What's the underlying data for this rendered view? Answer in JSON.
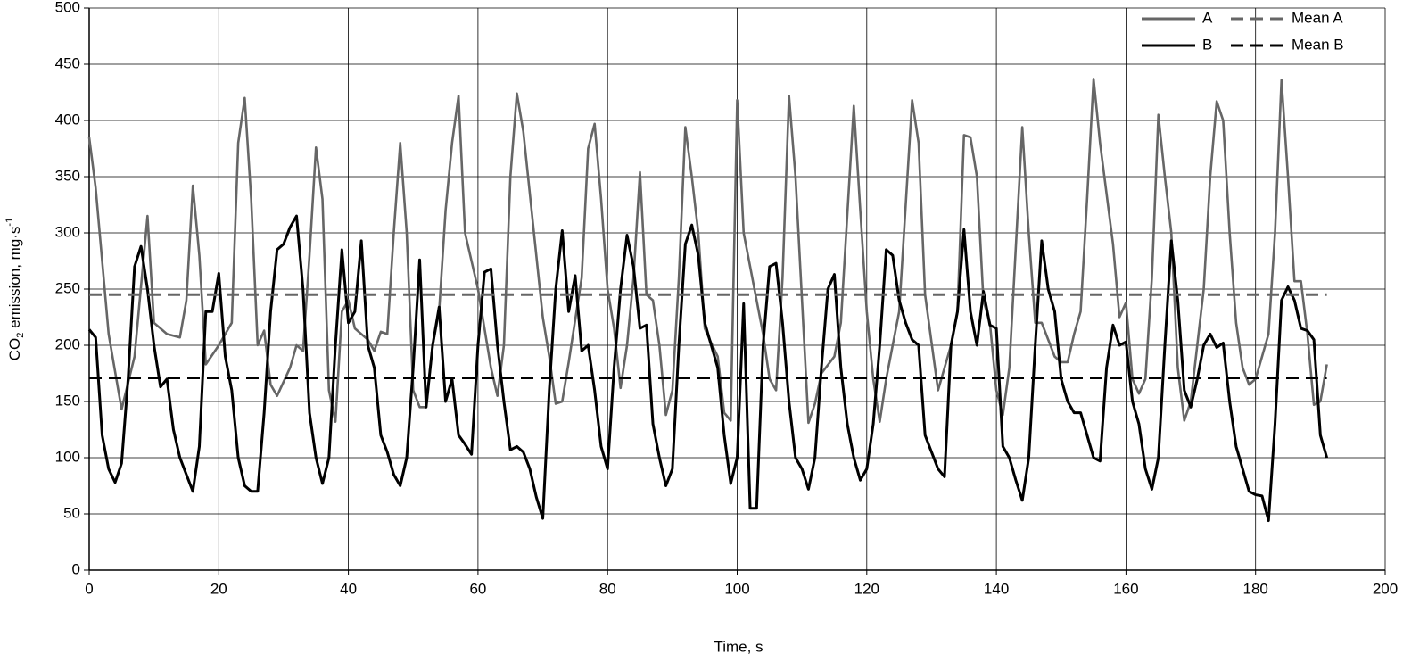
{
  "chart_data": {
    "type": "line",
    "x_label": "Time, s",
    "y_label": {
      "text": "CO",
      "sub": "2",
      "rest": " emission, mg·s",
      "sup": "-1"
    },
    "xlim": [
      0,
      200
    ],
    "xticks": [
      0,
      20,
      40,
      60,
      80,
      100,
      120,
      140,
      160,
      180,
      200
    ],
    "ylim": [
      0,
      500
    ],
    "yticks": [
      0,
      50,
      100,
      150,
      200,
      250,
      300,
      350,
      400,
      450,
      500
    ],
    "grid": true,
    "legend": "top-right",
    "series": [
      {
        "name": "A",
        "color": "#666666",
        "dash": false,
        "x": [
          0,
          1,
          3,
          5,
          7,
          9,
          10,
          12,
          14,
          15,
          16,
          17,
          18,
          20,
          22,
          23,
          24,
          25,
          26,
          27,
          28,
          29,
          31,
          32,
          33,
          34,
          35,
          36,
          37,
          38,
          39,
          40,
          41,
          43,
          44,
          45,
          46,
          47,
          48,
          49,
          50,
          51,
          52,
          53,
          54,
          55,
          56,
          57,
          58,
          60,
          62,
          63,
          64,
          65,
          66,
          67,
          69,
          70,
          71,
          72,
          73,
          74,
          76,
          77,
          78,
          79,
          80,
          81,
          82,
          83,
          84,
          85,
          86,
          87,
          88,
          89,
          90,
          91,
          92,
          93,
          94,
          95,
          96,
          97,
          98,
          99,
          100,
          101,
          103,
          104,
          105,
          106,
          107,
          108,
          109,
          111,
          112,
          113,
          115,
          116,
          118,
          119,
          120,
          121,
          122,
          123,
          125,
          127,
          128,
          129,
          131,
          132,
          133,
          134,
          135,
          136,
          137,
          138,
          139,
          140,
          141,
          142,
          144,
          145,
          146,
          147,
          149,
          150,
          151,
          152,
          153,
          154,
          155,
          156,
          158,
          159,
          160,
          161,
          162,
          163,
          164,
          165,
          166,
          167,
          168,
          169,
          170,
          172,
          173,
          174,
          175,
          176,
          177,
          178,
          179,
          180,
          182,
          183,
          184,
          185,
          186,
          187,
          188,
          189,
          190,
          191
        ],
        "values": [
          385,
          340,
          210,
          143,
          190,
          315,
          220,
          210,
          207,
          240,
          342,
          280,
          183,
          200,
          220,
          380,
          420,
          330,
          200,
          213,
          165,
          155,
          180,
          200,
          195,
          280,
          376,
          330,
          160,
          132,
          230,
          240,
          215,
          205,
          195,
          212,
          210,
          300,
          380,
          300,
          160,
          145,
          145,
          200,
          230,
          320,
          380,
          422,
          300,
          250,
          180,
          155,
          200,
          350,
          424,
          390,
          280,
          225,
          190,
          148,
          150,
          185,
          260,
          375,
          397,
          330,
          250,
          215,
          162,
          200,
          260,
          354,
          245,
          240,
          200,
          138,
          160,
          260,
          394,
          350,
          300,
          215,
          202,
          190,
          140,
          133,
          418,
          300,
          240,
          210,
          170,
          160,
          260,
          422,
          350,
          131,
          148,
          175,
          190,
          220,
          413,
          320,
          230,
          170,
          132,
          170,
          230,
          418,
          380,
          245,
          160,
          180,
          200,
          230,
          387,
          385,
          350,
          240,
          220,
          160,
          138,
          180,
          394,
          300,
          220,
          220,
          190,
          185,
          185,
          210,
          230,
          330,
          437,
          380,
          290,
          225,
          238,
          170,
          157,
          170,
          260,
          405,
          350,
          300,
          180,
          133,
          150,
          250,
          350,
          417,
          400,
          300,
          220,
          180,
          165,
          170,
          210,
          300,
          436,
          350,
          257,
          257,
          210,
          147,
          150,
          183
        ]
      },
      {
        "name": "B",
        "color": "#000000",
        "dash": false,
        "x": [
          0,
          1,
          2,
          3,
          4,
          5,
          6,
          7,
          8,
          9,
          10,
          11,
          12,
          13,
          14,
          15,
          16,
          17,
          18,
          19,
          20,
          21,
          22,
          23,
          24,
          25,
          26,
          27,
          28,
          29,
          30,
          31,
          32,
          33,
          34,
          35,
          36,
          37,
          38,
          39,
          40,
          41,
          42,
          43,
          44,
          45,
          46,
          47,
          48,
          49,
          50,
          51,
          52,
          53,
          54,
          55,
          56,
          57,
          58,
          59,
          60,
          61,
          62,
          63,
          64,
          65,
          66,
          67,
          68,
          69,
          70,
          71,
          72,
          73,
          74,
          75,
          76,
          77,
          78,
          79,
          80,
          81,
          82,
          83,
          84,
          85,
          86,
          87,
          88,
          89,
          90,
          91,
          92,
          93,
          94,
          95,
          96,
          97,
          98,
          99,
          100,
          101,
          102,
          103,
          104,
          105,
          106,
          107,
          108,
          109,
          110,
          111,
          112,
          113,
          114,
          115,
          116,
          117,
          118,
          119,
          120,
          121,
          122,
          123,
          124,
          125,
          126,
          127,
          128,
          129,
          130,
          131,
          132,
          133,
          134,
          135,
          136,
          137,
          138,
          139,
          140,
          141,
          142,
          143,
          144,
          145,
          146,
          147,
          148,
          149,
          150,
          151,
          152,
          153,
          154,
          155,
          156,
          157,
          158,
          159,
          160,
          161,
          162,
          163,
          164,
          165,
          166,
          167,
          168,
          169,
          170,
          171,
          172,
          173,
          174,
          175,
          176,
          177,
          178,
          179,
          180,
          181,
          182,
          183,
          184,
          185,
          186,
          187,
          188,
          189,
          190,
          191
        ],
        "values": [
          214,
          207,
          120,
          90,
          78,
          95,
          170,
          270,
          288,
          250,
          200,
          163,
          170,
          125,
          100,
          85,
          70,
          110,
          230,
          230,
          264,
          190,
          160,
          100,
          75,
          70,
          70,
          140,
          230,
          285,
          290,
          305,
          315,
          250,
          140,
          100,
          77,
          100,
          200,
          285,
          220,
          230,
          293,
          200,
          180,
          120,
          105,
          85,
          75,
          100,
          180,
          276,
          145,
          200,
          234,
          150,
          170,
          120,
          112,
          103,
          200,
          265,
          268,
          200,
          150,
          107,
          110,
          105,
          90,
          65,
          46,
          160,
          250,
          302,
          230,
          262,
          195,
          200,
          160,
          110,
          90,
          180,
          250,
          298,
          270,
          215,
          218,
          130,
          100,
          75,
          90,
          200,
          290,
          307,
          280,
          220,
          200,
          180,
          120,
          77,
          100,
          237,
          55,
          55,
          200,
          270,
          273,
          220,
          150,
          100,
          90,
          72,
          100,
          180,
          250,
          263,
          180,
          130,
          100,
          80,
          90,
          130,
          200,
          285,
          280,
          240,
          220,
          205,
          200,
          120,
          105,
          90,
          83,
          200,
          230,
          303,
          230,
          200,
          248,
          218,
          215,
          110,
          100,
          80,
          62,
          100,
          200,
          293,
          250,
          230,
          170,
          150,
          140,
          140,
          120,
          100,
          97,
          180,
          218,
          200,
          203,
          150,
          130,
          90,
          72,
          100,
          200,
          293,
          240,
          160,
          145,
          170,
          200,
          210,
          198,
          202,
          150,
          110,
          90,
          70,
          67,
          66,
          44,
          130,
          240,
          252,
          240,
          215,
          213,
          205,
          120,
          100
        ]
      },
      {
        "name": "Mean A",
        "color": "#666666",
        "dash": true,
        "x": [
          0,
          191
        ],
        "values": [
          245,
          245
        ]
      },
      {
        "name": "Mean B",
        "color": "#000000",
        "dash": true,
        "x": [
          0,
          191
        ],
        "values": [
          171,
          171
        ]
      }
    ]
  }
}
